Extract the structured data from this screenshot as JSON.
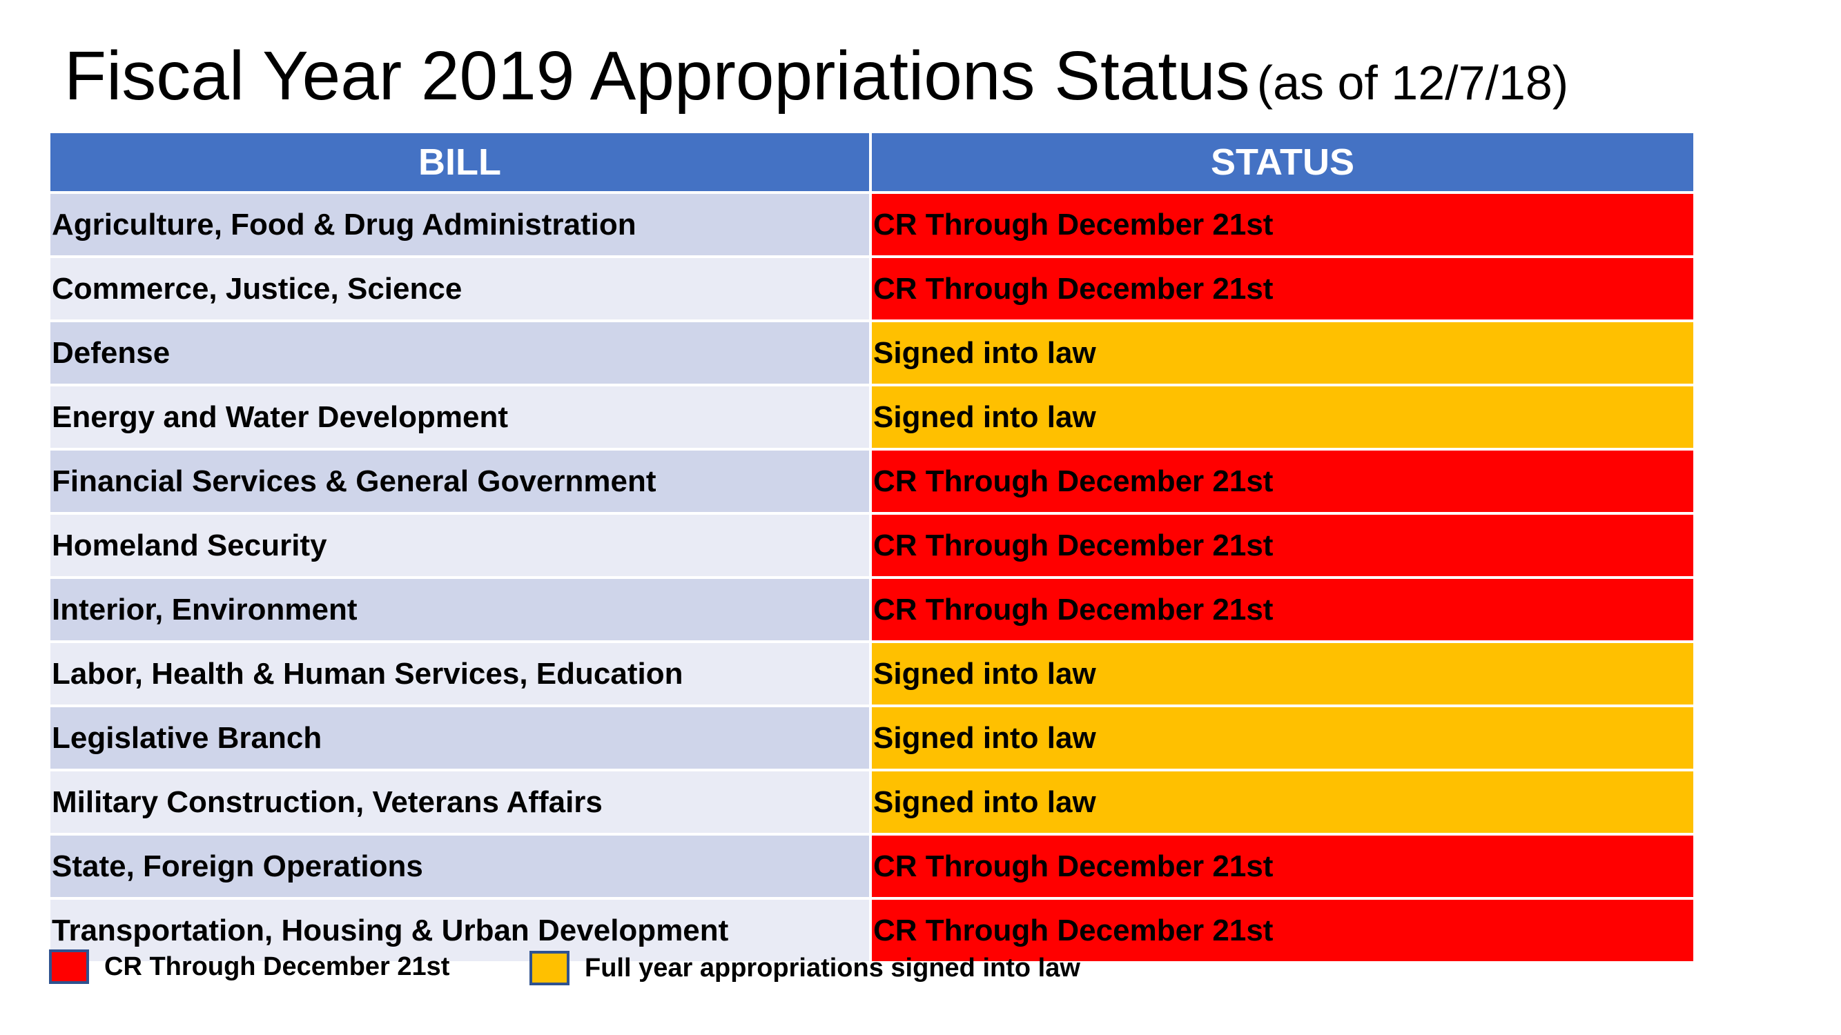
{
  "title": {
    "main": "Fiscal Year 2019 Appropriations Status",
    "sub": "(as of 12/7/18)"
  },
  "table": {
    "headers": {
      "bill": "BILL",
      "status": "STATUS"
    },
    "rows": [
      {
        "bill": "Agriculture, Food & Drug Administration",
        "status": "CR Through December 21st",
        "status_type": "cr"
      },
      {
        "bill": "Commerce, Justice, Science",
        "status": "CR Through December 21st",
        "status_type": "cr"
      },
      {
        "bill": "Defense",
        "status": "Signed into law",
        "status_type": "law"
      },
      {
        "bill": "Energy and Water Development",
        "status": "Signed into law",
        "status_type": "law"
      },
      {
        "bill": "Financial Services & General Government",
        "status": "CR Through December 21st",
        "status_type": "cr"
      },
      {
        "bill": "Homeland Security",
        "status": "CR Through December 21st",
        "status_type": "cr"
      },
      {
        "bill": "Interior, Environment",
        "status": "CR Through December 21st",
        "status_type": "cr"
      },
      {
        "bill": "Labor, Health & Human Services, Education",
        "status": "Signed into law",
        "status_type": "law"
      },
      {
        "bill": "Legislative Branch",
        "status": "Signed into law",
        "status_type": "law"
      },
      {
        "bill": "Military Construction, Veterans Affairs",
        "status": "Signed into law",
        "status_type": "law"
      },
      {
        "bill": "State, Foreign Operations",
        "status": "CR Through December 21st",
        "status_type": "cr"
      },
      {
        "bill": "Transportation, Housing & Urban Development",
        "status": "CR Through December 21st",
        "status_type": "cr"
      }
    ]
  },
  "legend": {
    "cr": {
      "label": "CR Through December 21st",
      "color": "#ff0000"
    },
    "law": {
      "label": "Full year appropriations signed into law",
      "color": "#ffc000"
    }
  },
  "colors": {
    "header": "#4472c4",
    "row_dark": "#cfd5ea",
    "row_light": "#e9ebf5",
    "cr": "#ff0000",
    "law": "#ffc000"
  }
}
